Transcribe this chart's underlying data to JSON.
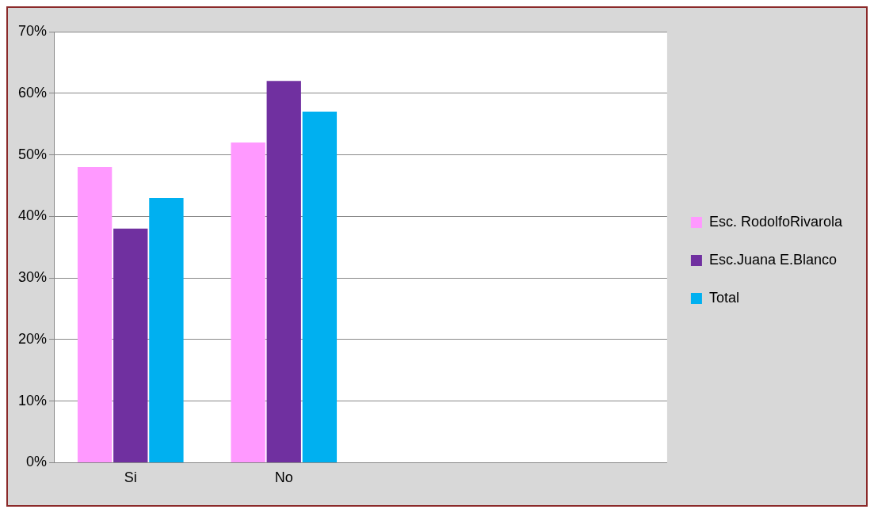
{
  "chart_data": {
    "type": "bar",
    "categories": [
      "Si",
      "No",
      null,
      null
    ],
    "series": [
      {
        "name": "Esc. RodolfoRivarola",
        "color": "#ff99ff",
        "values": [
          48,
          52,
          null,
          null
        ]
      },
      {
        "name": "Esc.Juana E.Blanco",
        "color": "#7030a0",
        "values": [
          38,
          62,
          null,
          null
        ]
      },
      {
        "name": "Total",
        "color": "#00b0f0",
        "values": [
          43,
          57,
          null,
          null
        ]
      }
    ],
    "ylim": [
      0,
      70
    ],
    "yticks": [
      {
        "value": 0,
        "label": "0%"
      },
      {
        "value": 10,
        "label": "10%"
      },
      {
        "value": 20,
        "label": "20%"
      },
      {
        "value": 30,
        "label": "30%"
      },
      {
        "value": 40,
        "label": "40%"
      },
      {
        "value": 50,
        "label": "50%"
      },
      {
        "value": 60,
        "label": "60%"
      },
      {
        "value": 70,
        "label": "70%"
      }
    ],
    "grid": "y",
    "legend": "right"
  }
}
